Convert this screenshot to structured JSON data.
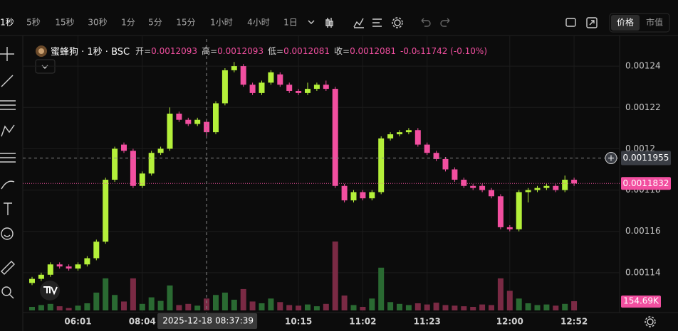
{
  "toolbar": {
    "intervals": [
      "1秒",
      "5秒",
      "15秒",
      "30秒",
      "1分",
      "5分",
      "15分",
      "1小时",
      "4小时",
      "1日"
    ],
    "toggle": [
      "价格",
      "市值"
    ]
  },
  "chart_data": {
    "type": "candlestick",
    "title": "蜜蜂狗 · 1秒 · BSC",
    "ohlc_legend": [
      {
        "label": "开=",
        "value": "0.0012093"
      },
      {
        "label": "高=",
        "value": "0.0012093"
      },
      {
        "label": "低=",
        "value": "0.0012081"
      },
      {
        "label": "收=",
        "value": "0.0012081"
      }
    ],
    "change": "-0.0₅11742 (-0.10%)",
    "up_color": "#b4f03a",
    "down_color": "#f24fa0",
    "up_volume_color": "#2a6a32",
    "down_volume_color": "#7a2a44",
    "categories": [
      null,
      null,
      null,
      null,
      null,
      "06:01",
      null,
      null,
      null,
      null,
      null,
      null,
      "08:04",
      null,
      null,
      null,
      null,
      null,
      null,
      null,
      null,
      null,
      null,
      null,
      null,
      null,
      null,
      null,
      null,
      "10:15",
      null,
      null,
      null,
      null,
      null,
      null,
      "11:02",
      null,
      null,
      null,
      null,
      null,
      null,
      "11:23",
      null,
      null,
      null,
      null,
      null,
      null,
      null,
      null,
      "12:00",
      null,
      null,
      null,
      null,
      null,
      null,
      "12:52"
    ],
    "open": [
      0.001135,
      0.001137,
      0.001139,
      0.001144,
      0.001143,
      0.001142,
      0.001144,
      0.001147,
      0.001155,
      0.001185,
      0.001202,
      0.001199,
      0.001182,
      0.001188,
      0.001198,
      0.0012,
      0.001217,
      0.001214,
      0.001212,
      0.001213,
      0.001208,
      0.001222,
      0.001238,
      0.00124,
      0.001231,
      0.001227,
      0.001232,
      0.001236,
      0.001231,
      0.001228,
      0.001227,
      0.001229,
      0.001231,
      0.001229,
      0.001182,
      0.001175,
      0.001179,
      0.001176,
      0.001179,
      0.001205,
      0.001207,
      0.001208,
      0.001209,
      0.001202,
      0.001198,
      0.001195,
      0.00119,
      0.001185,
      0.001182,
      0.001182,
      0.00118,
      0.001177,
      0.001162,
      0.001161,
      0.001179,
      0.00118,
      0.001181,
      0.001182,
      0.00118,
      0.001185
    ],
    "high": [
      0.001138,
      0.00114,
      0.001145,
      0.001145,
      0.001144,
      0.001145,
      0.001148,
      0.001156,
      0.001186,
      0.001201,
      0.001203,
      0.0012,
      0.001189,
      0.001199,
      0.001201,
      0.00122,
      0.001218,
      0.001215,
      0.001215,
      0.001214,
      0.001223,
      0.001239,
      0.001242,
      0.001241,
      0.001232,
      0.001233,
      0.001238,
      0.001237,
      0.001232,
      0.001229,
      0.001232,
      0.001232,
      0.001233,
      0.00123,
      0.001183,
      0.00118,
      0.00118,
      0.00118,
      0.001206,
      0.001208,
      0.001209,
      0.00121,
      0.00121,
      0.001203,
      0.001199,
      0.001196,
      0.001191,
      0.001186,
      0.001183,
      0.001183,
      0.001181,
      0.001178,
      0.001163,
      0.00118,
      0.001181,
      0.001182,
      0.001183,
      0.001183,
      0.001187,
      0.001186
    ],
    "low": [
      0.001134,
      0.001136,
      0.001138,
      0.001142,
      0.001141,
      0.001141,
      0.001143,
      0.001146,
      0.001154,
      0.001184,
      0.001198,
      0.001181,
      0.001181,
      0.001187,
      0.001197,
      0.001199,
      0.001213,
      0.001211,
      0.001211,
      0.001206,
      0.001207,
      0.001221,
      0.001237,
      0.00123,
      0.001226,
      0.001226,
      0.001231,
      0.00123,
      0.001227,
      0.001226,
      0.001226,
      0.001228,
      0.001228,
      0.001181,
      0.001174,
      0.001174,
      0.001175,
      0.001175,
      0.001178,
      0.001204,
      0.001206,
      0.001207,
      0.001201,
      0.001197,
      0.001194,
      0.001189,
      0.001184,
      0.001181,
      0.00118,
      0.001179,
      0.001176,
      0.001161,
      0.00116,
      0.00116,
      0.001174,
      0.001179,
      0.00118,
      0.001179,
      0.001179,
      0.001182
    ],
    "close": [
      0.001137,
      0.001139,
      0.001144,
      0.001143,
      0.001142,
      0.001144,
      0.001147,
      0.001155,
      0.001185,
      0.0012,
      0.001199,
      0.001182,
      0.001188,
      0.001198,
      0.0012,
      0.001217,
      0.001214,
      0.001212,
      0.001214,
      0.001208,
      0.001222,
      0.001238,
      0.00124,
      0.001231,
      0.001227,
      0.001232,
      0.001237,
      0.001231,
      0.001228,
      0.001227,
      0.001229,
      0.001231,
      0.001229,
      0.001182,
      0.001175,
      0.001179,
      0.001176,
      0.001179,
      0.001205,
      0.001207,
      0.001208,
      0.001209,
      0.001202,
      0.001198,
      0.001195,
      0.00119,
      0.001185,
      0.001182,
      0.001181,
      0.00118,
      0.001177,
      0.001162,
      0.001161,
      0.001179,
      0.00118,
      0.001181,
      0.001182,
      0.00118,
      0.001185,
      0.0011832
    ],
    "volume": {
      "axis": "y2",
      "values": [
        60000,
        90000,
        110000,
        70000,
        40000,
        80000,
        120000,
        300000,
        540000,
        260000,
        150000,
        540000,
        110000,
        220000,
        160000,
        420000,
        90000,
        110000,
        80000,
        200000,
        260000,
        300000,
        180000,
        360000,
        150000,
        120000,
        200000,
        140000,
        90000,
        80000,
        100000,
        70000,
        110000,
        1160000,
        250000,
        90000,
        60000,
        200000,
        720000,
        140000,
        110000,
        90000,
        120000,
        100000,
        130000,
        90000,
        80000,
        70000,
        60000,
        100000,
        90000,
        540000,
        330000,
        200000,
        120000,
        90000,
        100000,
        80000,
        110000,
        154690
      ],
      "value_labels": [
        null,
        null,
        null,
        null,
        null,
        null,
        null,
        null,
        null,
        null,
        null,
        null,
        null,
        null,
        null,
        null,
        null,
        null,
        null,
        null,
        null,
        null,
        null,
        null,
        null,
        null,
        null,
        null,
        null,
        null,
        null,
        null,
        null,
        null,
        null,
        null,
        null,
        null,
        null,
        null,
        null,
        null,
        null,
        null,
        null,
        null,
        null,
        null,
        null,
        null,
        null,
        null,
        null,
        null,
        null,
        null,
        null,
        null,
        null,
        "154.69K"
      ]
    },
    "ylim": [
      0.0011207,
      0.0012531
    ],
    "yticks": [
      0.00114,
      0.00116,
      0.00118,
      0.0012,
      0.00122,
      0.00124
    ],
    "y2lim": [
      0,
      1400000
    ],
    "grid": true,
    "crosshair": {
      "price": 0.0011955,
      "date": "2025-12-18",
      "time": "08:37:39",
      "index": 19
    }
  }
}
